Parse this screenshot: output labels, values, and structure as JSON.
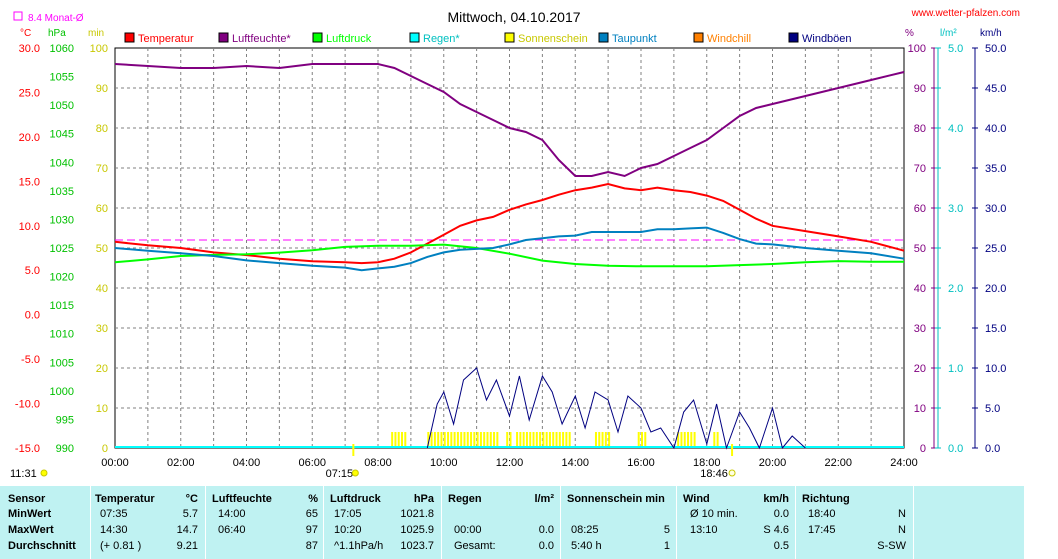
{
  "title": "Mittwoch, 04.10.2017",
  "website": "www.wetter-pfalzen.com",
  "monat_label": "8.4 Monat-Ø",
  "axis_units": {
    "temp": "°C",
    "pressure": "hPa",
    "sun": "min",
    "humidity": "%",
    "rain": "l/m²",
    "wind": "km/h"
  },
  "legend": [
    {
      "name": "Temperatur",
      "color": "#ff0000"
    },
    {
      "name": "Luftfeuchte*",
      "color": "#800080"
    },
    {
      "name": "Luftdruck",
      "color": "#00ff00"
    },
    {
      "name": "Regen*",
      "color": "#00ffff"
    },
    {
      "name": "Sonnenschein",
      "color": "#ffff00"
    },
    {
      "name": "Taupunkt",
      "color": "#0080c0"
    },
    {
      "name": "Windchill",
      "color": "#ff8000"
    },
    {
      "name": "Windböen",
      "color": "#000080"
    }
  ],
  "sunrise": "07:15",
  "sunset": "18:46",
  "bottom_left_time": "11:31",
  "chart_data": {
    "type": "line",
    "title": "Mittwoch, 04.10.2017",
    "x_ticks": [
      "00:00",
      "02:00",
      "04:00",
      "06:00",
      "08:00",
      "10:00",
      "12:00",
      "14:00",
      "16:00",
      "18:00",
      "20:00",
      "22:00",
      "24:00"
    ],
    "axes": {
      "temp": {
        "ticks": [
          "30.0",
          "25.0",
          "20.0",
          "15.0",
          "10.0",
          "5.0",
          "0.0",
          "-5.0",
          "-10.0",
          "-15.0"
        ],
        "ylim": [
          -15,
          30
        ]
      },
      "pressure": {
        "ticks": [
          "1060",
          "1055",
          "1050",
          "1045",
          "1040",
          "1035",
          "1030",
          "1025",
          "1020",
          "1015",
          "1010",
          "1005",
          "1000",
          "995",
          "990"
        ],
        "ylim": [
          990,
          1060
        ]
      },
      "sun": {
        "ticks": [
          "100",
          "90",
          "80",
          "70",
          "60",
          "50",
          "40",
          "30",
          "20",
          "10",
          "0"
        ],
        "ylim": [
          0,
          100
        ]
      },
      "humidity": {
        "ticks": [
          "100",
          "90",
          "80",
          "70",
          "60",
          "50",
          "40",
          "30",
          "20",
          "10",
          "0"
        ],
        "ylim": [
          0,
          100
        ]
      },
      "rain": {
        "ticks": [
          "5.0",
          "4.0",
          "3.0",
          "2.0",
          "1.0",
          "0.0"
        ],
        "ylim": [
          0,
          5
        ]
      },
      "wind": {
        "ticks": [
          "50.0",
          "45.0",
          "40.0",
          "35.0",
          "30.0",
          "25.0",
          "20.0",
          "15.0",
          "10.0",
          "5.0",
          "0.0"
        ],
        "ylim": [
          0,
          50
        ]
      }
    },
    "monthly_avg_temp": 8.4,
    "series": [
      {
        "name": "Temperatur",
        "axis": "temp",
        "x": [
          0,
          1,
          2,
          3,
          4,
          5,
          6,
          7,
          7.5,
          8,
          8.5,
          9,
          9.5,
          10,
          10.5,
          11,
          11.5,
          12,
          12.5,
          13,
          13.5,
          14,
          14.5,
          15,
          15.5,
          16,
          16.5,
          17,
          17.5,
          18,
          18.5,
          19,
          19.5,
          20,
          21,
          22,
          23,
          24
        ],
        "y": [
          8.2,
          7.8,
          7.5,
          7.0,
          6.7,
          6.3,
          6.0,
          5.9,
          5.8,
          5.9,
          6.3,
          7.0,
          8.0,
          9.0,
          10.0,
          10.6,
          11.0,
          11.8,
          12.4,
          12.9,
          13.5,
          14.0,
          14.3,
          14.7,
          14.2,
          14.0,
          14.3,
          14.0,
          13.8,
          13.4,
          12.8,
          11.8,
          10.8,
          10.0,
          9.4,
          8.8,
          8.2,
          7.2
        ]
      },
      {
        "name": "Luftfeuchte*",
        "axis": "humidity",
        "x": [
          0,
          1,
          2,
          3,
          4,
          5,
          6,
          7,
          8,
          8.5,
          9,
          9.5,
          10,
          10.5,
          11,
          11.5,
          12,
          12.5,
          13,
          13.5,
          14,
          14.5,
          15,
          15.5,
          16,
          16.5,
          17,
          17.5,
          18,
          18.5,
          19,
          19.5,
          20,
          21,
          22,
          23,
          24
        ],
        "y": [
          96,
          95.5,
          95,
          95,
          95.5,
          95,
          96,
          96,
          96,
          95,
          93,
          91,
          89,
          86,
          84,
          82,
          80,
          79,
          77,
          72,
          68,
          68,
          69,
          68,
          70,
          71,
          73,
          75,
          77,
          80,
          83,
          85,
          86,
          88,
          90,
          92,
          94
        ]
      },
      {
        "name": "Luftdruck",
        "axis": "pressure",
        "x": [
          0,
          1,
          2,
          3,
          4,
          5,
          6,
          7,
          8,
          9,
          10,
          11,
          12,
          13,
          14,
          15,
          16,
          17,
          18,
          19,
          20,
          21,
          22,
          23,
          24
        ],
        "y": [
          1022.5,
          1023.0,
          1023.6,
          1023.8,
          1023.9,
          1024.2,
          1024.6,
          1025.2,
          1025.4,
          1025.4,
          1025.6,
          1025.0,
          1024.0,
          1022.8,
          1022.2,
          1021.9,
          1021.8,
          1021.8,
          1021.8,
          1022.0,
          1022.2,
          1022.5,
          1022.7,
          1022.6,
          1022.6
        ]
      },
      {
        "name": "Taupunkt",
        "axis": "temp",
        "x": [
          0,
          1,
          2,
          3,
          4,
          5,
          6,
          7,
          7.5,
          8,
          8.5,
          9,
          9.5,
          10,
          10.5,
          11,
          11.5,
          12,
          12.5,
          13,
          13.5,
          14,
          14.5,
          15,
          15.5,
          16,
          16.5,
          17,
          17.5,
          18,
          18.5,
          19,
          19.5,
          20,
          21,
          22,
          23,
          24
        ],
        "y": [
          7.5,
          7.2,
          6.9,
          6.6,
          6.1,
          5.8,
          5.5,
          5.3,
          5.0,
          5.2,
          5.4,
          5.8,
          6.5,
          7.0,
          7.3,
          7.4,
          7.5,
          7.9,
          8.4,
          8.6,
          8.8,
          8.9,
          9.3,
          9.3,
          9.3,
          9.3,
          9.6,
          9.6,
          9.7,
          9.8,
          9.2,
          8.5,
          8.0,
          7.9,
          7.5,
          7.2,
          6.9,
          6.3
        ]
      },
      {
        "name": "Windböen",
        "axis": "wind",
        "x": [
          9.5,
          9.8,
          10,
          10.3,
          10.6,
          11,
          11.3,
          11.6,
          12,
          12.3,
          12.6,
          13,
          13.3,
          13.6,
          14,
          14.3,
          14.6,
          15,
          15.3,
          15.6,
          16,
          16.3,
          16.6,
          17,
          17.3,
          17.6,
          18,
          18.3,
          18.6,
          19,
          19.3,
          19.6,
          20,
          20.3,
          20.6,
          21
        ],
        "y": [
          0,
          5.5,
          7.0,
          3.0,
          8.5,
          10.0,
          6.0,
          8.5,
          4.0,
          9.0,
          3.5,
          9.0,
          7.0,
          3.0,
          6.5,
          2.5,
          7.0,
          6.0,
          2.0,
          6.5,
          5.0,
          2.0,
          2.5,
          0,
          4.5,
          6.0,
          0.5,
          5.5,
          0,
          4.5,
          2.5,
          0,
          5.0,
          0,
          1.5,
          0
        ]
      },
      {
        "name": "Sonnenschein",
        "axis": "sun",
        "type": "bar",
        "bars": [
          [
            8.4,
            8.8,
            4
          ],
          [
            9.5,
            11.6,
            4
          ],
          [
            11.9,
            12.1,
            4
          ],
          [
            12.2,
            13.8,
            4
          ],
          [
            14.6,
            15.0,
            4
          ],
          [
            15.9,
            16.2,
            4
          ],
          [
            17.1,
            17.7,
            4
          ],
          [
            18.2,
            18.4,
            4
          ]
        ]
      }
    ]
  },
  "stats": {
    "headers": {
      "sensor": "Sensor",
      "temp": "Temperatur",
      "temp_unit": "°C",
      "hum": "Luftfeuchte",
      "hum_unit": "%",
      "press": "Luftdruck",
      "press_unit": "hPa",
      "rain": "Regen",
      "rain_unit": "l/m²",
      "sun": "Sonnenschein min",
      "wind": "Wind",
      "wind_unit": "km/h",
      "dir": "Richtung"
    },
    "rows": [
      {
        "label": "MinWert",
        "temp_time": "07:35",
        "temp_val": "5.7",
        "hum_time": "14:00",
        "hum_val": "65",
        "press_time": "17:05",
        "press_val": "1021.8",
        "rain_time": "",
        "rain_val": "",
        "sun_time": "",
        "sun_val": "",
        "wind_time": "Ø 10 min.",
        "wind_val": "0.0",
        "dir_time": "18:40",
        "dir_val": "N"
      },
      {
        "label": "MaxWert",
        "temp_time": "14:30",
        "temp_val": "14.7",
        "hum_time": "06:40",
        "hum_val": "97",
        "press_time": "10:20",
        "press_val": "1025.9",
        "rain_time": "00:00",
        "rain_val": "0.0",
        "sun_time": "08:25",
        "sun_val": "5",
        "wind_time": "13:10",
        "wind_val": "S 4.6",
        "dir_time": "17:45",
        "dir_val": "N"
      },
      {
        "label": "Durchschnitt",
        "temp_time": "(+ 0.81 )",
        "temp_val": "9.21",
        "hum_time": "",
        "hum_val": "87",
        "press_time": "^1.1hPa/h",
        "press_val": "1023.7",
        "rain_time": "Gesamt:",
        "rain_val": "0.0",
        "sun_time": "5:40 h",
        "sun_val": "1",
        "wind_time": "",
        "wind_val": "0.5",
        "dir_time": "",
        "dir_val": "S-SW"
      }
    ]
  }
}
